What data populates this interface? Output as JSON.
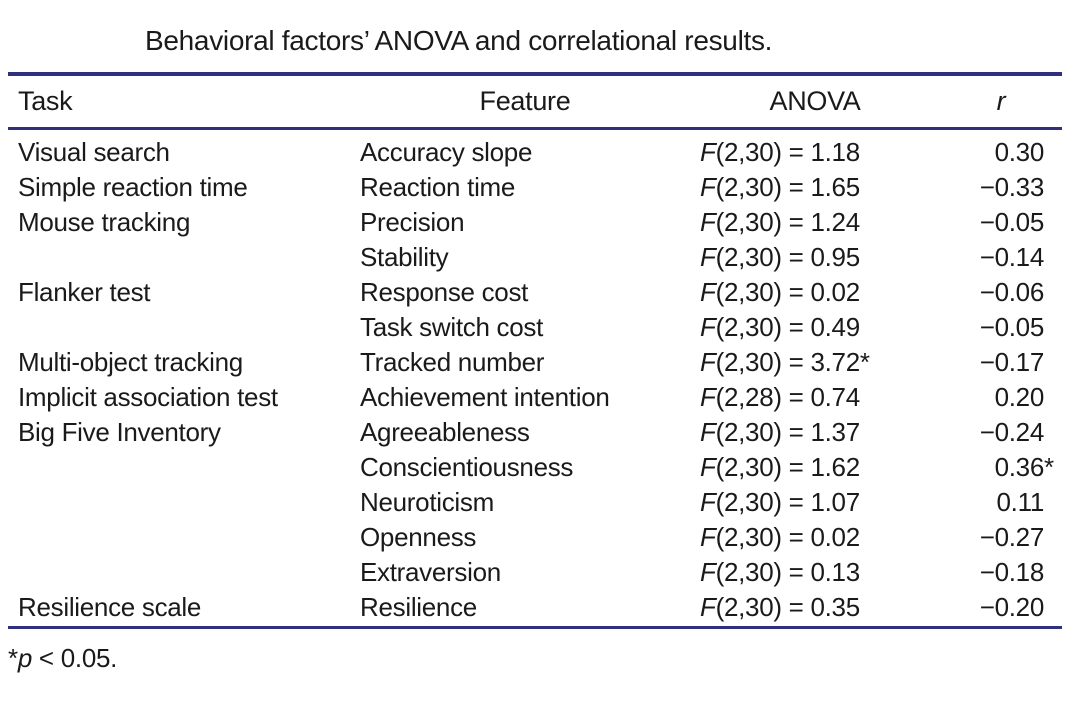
{
  "caption": "Behavioral factors’ ANOVA and correlational results.",
  "colors": {
    "rule": "#30307c",
    "text": "#1a1a1a"
  },
  "table": {
    "headers": {
      "task": "Task",
      "feature": "Feature",
      "anova": "ANOVA",
      "r": "r"
    },
    "rows": [
      {
        "task": "Visual search",
        "feature": "Accuracy slope",
        "anova_f": "F",
        "anova_stat": "(2,30) = 1.18",
        "r": "0.30",
        "r_star": ""
      },
      {
        "task": "Simple reaction time",
        "feature": "Reaction time",
        "anova_f": "F",
        "anova_stat": "(2,30) = 1.65",
        "r": "−0.33",
        "r_star": ""
      },
      {
        "task": "Mouse tracking",
        "feature": "Precision",
        "anova_f": "F",
        "anova_stat": "(2,30) = 1.24",
        "r": "−0.05",
        "r_star": ""
      },
      {
        "task": "",
        "feature": "Stability",
        "anova_f": "F",
        "anova_stat": "(2,30) = 0.95",
        "r": "−0.14",
        "r_star": ""
      },
      {
        "task": "Flanker test",
        "feature": "Response cost",
        "anova_f": "F",
        "anova_stat": "(2,30) = 0.02",
        "r": "−0.06",
        "r_star": ""
      },
      {
        "task": "",
        "feature": "Task switch cost",
        "anova_f": "F",
        "anova_stat": "(2,30) = 0.49",
        "r": "−0.05",
        "r_star": ""
      },
      {
        "task": "Multi-object tracking",
        "feature": "Tracked number",
        "anova_f": "F",
        "anova_stat": "(2,30) = 3.72*",
        "r": "−0.17",
        "r_star": ""
      },
      {
        "task": "Implicit association test",
        "feature": "Achievement intention",
        "anova_f": "F",
        "anova_stat": "(2,28) = 0.74",
        "r": "0.20",
        "r_star": ""
      },
      {
        "task": "Big Five Inventory",
        "feature": "Agreeableness",
        "anova_f": "F",
        "anova_stat": "(2,30) = 1.37",
        "r": "−0.24",
        "r_star": ""
      },
      {
        "task": "",
        "feature": "Conscientiousness",
        "anova_f": "F",
        "anova_stat": "(2,30) = 1.62",
        "r": "0.36",
        "r_star": "*"
      },
      {
        "task": "",
        "feature": "Neuroticism",
        "anova_f": "F",
        "anova_stat": "(2,30) = 1.07",
        "r": "0.11",
        "r_star": ""
      },
      {
        "task": "",
        "feature": "Openness",
        "anova_f": "F",
        "anova_stat": "(2,30) = 0.02",
        "r": "−0.27",
        "r_star": ""
      },
      {
        "task": "",
        "feature": "Extraversion",
        "anova_f": "F",
        "anova_stat": "(2,30) = 0.13",
        "r": "−0.18",
        "r_star": ""
      },
      {
        "task": "Resilience scale",
        "feature": "Resilience",
        "anova_f": "F",
        "anova_stat": "(2,30) = 0.35",
        "r": "−0.20",
        "r_star": ""
      }
    ]
  },
  "footnote": {
    "star": "*",
    "p": "p",
    "rest": " < 0.05."
  }
}
